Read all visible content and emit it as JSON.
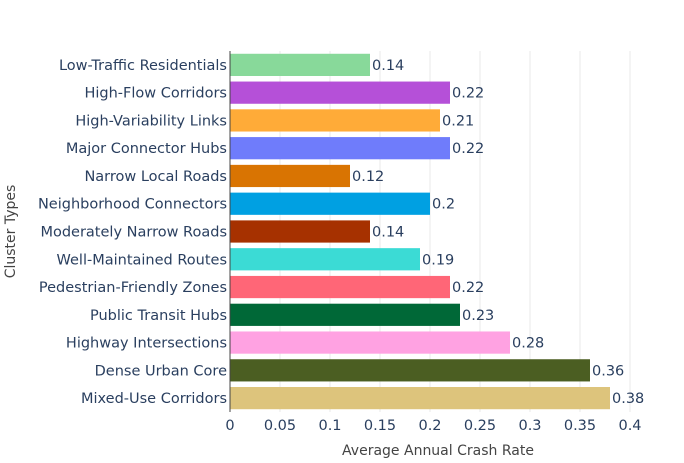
{
  "chart_data": {
    "type": "bar",
    "orientation": "horizontal",
    "categories": [
      "Low-Traffic Residentials",
      "High-Flow Corridors",
      "High-Variability Links",
      "Major Connector Hubs",
      "Narrow Local Roads",
      "Neighborhood Connectors",
      "Moderately Narrow Roads",
      "Well-Maintained Routes",
      "Pedestrian-Friendly Zones",
      "Public Transit Hubs",
      "Highway Intersections",
      "Dense Urban Core",
      "Mixed-Use Corridors"
    ],
    "values": [
      0.14,
      0.22,
      0.21,
      0.22,
      0.12,
      0.2,
      0.14,
      0.19,
      0.22,
      0.23,
      0.28,
      0.36,
      0.38
    ],
    "value_labels": [
      "0.14",
      "0.22",
      "0.21",
      "0.22",
      "0.12",
      "0.2",
      "0.14",
      "0.19",
      "0.22",
      "0.23",
      "0.28",
      "0.36",
      "0.38"
    ],
    "colors": [
      "#88d99a",
      "#b550d8",
      "#ffab38",
      "#6f7cfb",
      "#d97402",
      "#00a0e2",
      "#a63100",
      "#3bdbd5",
      "#ff6677",
      "#006837",
      "#ffa2e2",
      "#4b5e22",
      "#ddc47c"
    ],
    "xlabel": "Average Annual Crash Rate",
    "ylabel": "Cluster Types",
    "xlim": [
      0,
      0.4
    ],
    "xticks": [
      0,
      0.05,
      0.1,
      0.15,
      0.2,
      0.25,
      0.3,
      0.35,
      0.4
    ],
    "xtick_labels": [
      "0",
      "0.05",
      "0.1",
      "0.15",
      "0.2",
      "0.25",
      "0.3",
      "0.35",
      "0.4"
    ],
    "grid": true
  }
}
